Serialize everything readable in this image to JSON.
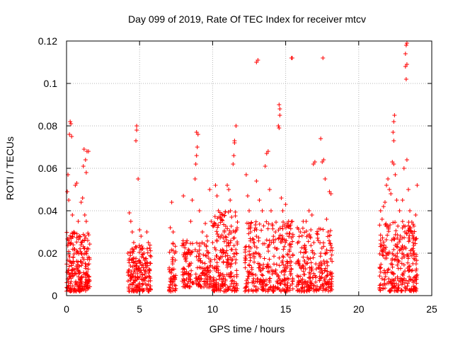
{
  "chart_data": {
    "type": "scatter",
    "title": "Day 099 of 2019, Rate Of TEC Index for receiver mtcv",
    "xlabel": "GPS time / hours",
    "ylabel": "ROTI / TECUs",
    "xlim": [
      0,
      25
    ],
    "ylim": [
      0,
      0.12
    ],
    "x_ticks": [
      0,
      5,
      10,
      15,
      20,
      25
    ],
    "x_tick_labels": [
      "0",
      "5",
      "10",
      "15",
      "20",
      "25"
    ],
    "y_ticks": [
      0,
      0.02,
      0.04,
      0.06,
      0.08,
      0.1,
      0.12
    ],
    "y_tick_labels": [
      "0",
      "0.02",
      "0.04",
      "0.06",
      "0.08",
      "0.1",
      "0.12"
    ],
    "grid": true,
    "marker": "+",
    "color": "#ff0000",
    "series": [
      {
        "name": "ROTI",
        "points": [
          [
            0.1,
            0.012
          ],
          [
            0.2,
            0.025
          ],
          [
            0.25,
            0.082
          ],
          [
            0.2,
            0.076
          ],
          [
            0.3,
            0.081
          ],
          [
            0.35,
            0.075
          ],
          [
            0.1,
            0.057
          ],
          [
            0.05,
            0.049
          ],
          [
            0.15,
            0.045
          ],
          [
            0.4,
            0.038
          ],
          [
            0.5,
            0.03
          ],
          [
            0.6,
            0.052
          ],
          [
            0.7,
            0.053
          ],
          [
            0.55,
            0.022
          ],
          [
            0.45,
            0.018
          ],
          [
            0.3,
            0.01
          ],
          [
            0.6,
            0.006
          ],
          [
            0.8,
            0.035
          ],
          [
            0.9,
            0.028
          ],
          [
            1.0,
            0.044
          ],
          [
            1.1,
            0.046
          ],
          [
            1.15,
            0.061
          ],
          [
            1.2,
            0.069
          ],
          [
            1.3,
            0.064
          ],
          [
            1.35,
            0.058
          ],
          [
            1.4,
            0.068
          ],
          [
            1.5,
            0.068
          ],
          [
            1.25,
            0.038
          ],
          [
            1.35,
            0.035
          ],
          [
            1.45,
            0.026
          ],
          [
            1.5,
            0.022
          ],
          [
            1.3,
            0.015
          ],
          [
            1.2,
            0.01
          ],
          [
            1.0,
            0.008
          ],
          [
            0.8,
            0.012
          ],
          [
            4.3,
            0.039
          ],
          [
            4.4,
            0.035
          ],
          [
            4.5,
            0.03
          ],
          [
            4.6,
            0.025
          ],
          [
            4.2,
            0.02
          ],
          [
            4.8,
            0.08
          ],
          [
            4.8,
            0.078
          ],
          [
            4.75,
            0.073
          ],
          [
            4.9,
            0.055
          ],
          [
            5.0,
            0.031
          ],
          [
            5.1,
            0.028
          ],
          [
            5.2,
            0.022
          ],
          [
            5.3,
            0.02
          ],
          [
            5.5,
            0.03
          ],
          [
            5.6,
            0.025
          ],
          [
            5.4,
            0.015
          ],
          [
            5.2,
            0.01
          ],
          [
            4.9,
            0.012
          ],
          [
            4.4,
            0.01
          ],
          [
            4.6,
            0.006
          ],
          [
            5.7,
            0.012
          ],
          [
            7.2,
            0.044
          ],
          [
            7.1,
            0.032
          ],
          [
            7.3,
            0.03
          ],
          [
            7.4,
            0.02
          ],
          [
            7.2,
            0.012
          ],
          [
            7.3,
            0.008
          ],
          [
            7.4,
            0.005
          ],
          [
            8.0,
            0.047
          ],
          [
            8.2,
            0.02
          ],
          [
            8.4,
            0.015
          ],
          [
            8.5,
            0.035
          ],
          [
            8.6,
            0.045
          ],
          [
            8.8,
            0.055
          ],
          [
            8.85,
            0.062
          ],
          [
            8.9,
            0.066
          ],
          [
            8.95,
            0.07
          ],
          [
            8.9,
            0.077
          ],
          [
            9.0,
            0.076
          ],
          [
            9.1,
            0.04
          ],
          [
            9.3,
            0.03
          ],
          [
            9.5,
            0.034
          ],
          [
            9.6,
            0.028
          ],
          [
            9.7,
            0.02
          ],
          [
            9.8,
            0.05
          ],
          [
            9.9,
            0.035
          ],
          [
            9.7,
            0.012
          ],
          [
            9.4,
            0.01
          ],
          [
            9.0,
            0.008
          ],
          [
            8.6,
            0.006
          ],
          [
            8.3,
            0.01
          ],
          [
            10.0,
            0.025
          ],
          [
            10.2,
            0.052
          ],
          [
            10.3,
            0.047
          ],
          [
            10.4,
            0.04
          ],
          [
            10.6,
            0.036
          ],
          [
            10.8,
            0.03
          ],
          [
            10.9,
            0.02
          ],
          [
            11.0,
            0.052
          ],
          [
            11.1,
            0.05
          ],
          [
            11.2,
            0.045
          ],
          [
            11.3,
            0.037
          ],
          [
            11.4,
            0.062
          ],
          [
            11.45,
            0.066
          ],
          [
            11.5,
            0.072
          ],
          [
            11.5,
            0.073
          ],
          [
            11.6,
            0.08
          ],
          [
            11.3,
            0.015
          ],
          [
            11.1,
            0.01
          ],
          [
            10.7,
            0.008
          ],
          [
            10.4,
            0.012
          ],
          [
            10.1,
            0.007
          ],
          [
            11.6,
            0.02
          ],
          [
            12.3,
            0.057
          ],
          [
            12.4,
            0.047
          ],
          [
            12.5,
            0.04
          ],
          [
            12.6,
            0.03
          ],
          [
            12.8,
            0.025
          ],
          [
            13.0,
            0.11
          ],
          [
            13.1,
            0.111
          ],
          [
            13.0,
            0.054
          ],
          [
            13.2,
            0.045
          ],
          [
            13.4,
            0.04
          ],
          [
            13.6,
            0.061
          ],
          [
            13.7,
            0.067
          ],
          [
            13.8,
            0.068
          ],
          [
            13.9,
            0.05
          ],
          [
            14.0,
            0.04
          ],
          [
            14.1,
            0.033
          ],
          [
            14.3,
            0.03
          ],
          [
            14.5,
            0.08
          ],
          [
            14.55,
            0.079
          ],
          [
            14.6,
            0.085
          ],
          [
            14.55,
            0.09
          ],
          [
            14.6,
            0.088
          ],
          [
            14.7,
            0.046
          ],
          [
            14.8,
            0.04
          ],
          [
            15.0,
            0.043
          ],
          [
            15.2,
            0.035
          ],
          [
            15.4,
            0.112
          ],
          [
            15.45,
            0.112
          ],
          [
            15.5,
            0.028
          ],
          [
            15.3,
            0.018
          ],
          [
            14.9,
            0.012
          ],
          [
            14.4,
            0.01
          ],
          [
            13.9,
            0.008
          ],
          [
            13.3,
            0.012
          ],
          [
            12.8,
            0.008
          ],
          [
            12.5,
            0.01
          ],
          [
            15.8,
            0.032
          ],
          [
            16.0,
            0.03
          ],
          [
            16.2,
            0.035
          ],
          [
            16.4,
            0.035
          ],
          [
            16.6,
            0.04
          ],
          [
            16.8,
            0.038
          ],
          [
            16.9,
            0.062
          ],
          [
            17.0,
            0.063
          ],
          [
            17.4,
            0.074
          ],
          [
            17.5,
            0.063
          ],
          [
            17.6,
            0.064
          ],
          [
            17.55,
            0.112
          ],
          [
            17.7,
            0.055
          ],
          [
            17.8,
            0.036
          ],
          [
            18.0,
            0.049
          ],
          [
            18.1,
            0.048
          ],
          [
            17.9,
            0.03
          ],
          [
            17.7,
            0.02
          ],
          [
            17.3,
            0.015
          ],
          [
            16.8,
            0.012
          ],
          [
            16.3,
            0.01
          ],
          [
            15.9,
            0.007
          ],
          [
            18.1,
            0.01
          ],
          [
            21.5,
            0.04
          ],
          [
            21.6,
            0.036
          ],
          [
            21.7,
            0.042
          ],
          [
            21.8,
            0.044
          ],
          [
            21.9,
            0.052
          ],
          [
            22.0,
            0.055
          ],
          [
            22.1,
            0.05
          ],
          [
            22.2,
            0.048
          ],
          [
            22.3,
            0.063
          ],
          [
            22.4,
            0.062
          ],
          [
            22.4,
            0.073
          ],
          [
            22.35,
            0.077
          ],
          [
            22.4,
            0.082
          ],
          [
            22.45,
            0.085
          ],
          [
            22.5,
            0.057
          ],
          [
            22.6,
            0.045
          ],
          [
            22.8,
            0.04
          ],
          [
            23.0,
            0.045
          ],
          [
            23.1,
            0.06
          ],
          [
            23.2,
            0.108
          ],
          [
            23.25,
            0.102
          ],
          [
            23.3,
            0.109
          ],
          [
            23.2,
            0.114
          ],
          [
            23.3,
            0.119
          ],
          [
            23.25,
            0.118
          ],
          [
            23.3,
            0.064
          ],
          [
            23.4,
            0.05
          ],
          [
            23.5,
            0.04
          ],
          [
            23.7,
            0.03
          ],
          [
            23.9,
            0.038
          ],
          [
            24.0,
            0.052
          ],
          [
            23.8,
            0.02
          ],
          [
            23.5,
            0.012
          ],
          [
            23.0,
            0.01
          ],
          [
            22.5,
            0.008
          ],
          [
            22.0,
            0.012
          ],
          [
            21.6,
            0.008
          ]
        ],
        "dense_bands": [
          {
            "x_range": [
              0.0,
              1.6
            ],
            "y_range": [
              0.002,
              0.03
            ],
            "n": 220
          },
          {
            "x_range": [
              4.2,
              5.8
            ],
            "y_range": [
              0.002,
              0.024
            ],
            "n": 180
          },
          {
            "x_range": [
              7.0,
              7.5
            ],
            "y_range": [
              0.002,
              0.025
            ],
            "n": 50
          },
          {
            "x_range": [
              7.9,
              9.9
            ],
            "y_range": [
              0.004,
              0.026
            ],
            "n": 170
          },
          {
            "x_range": [
              10.0,
              11.7
            ],
            "y_range": [
              0.002,
              0.04
            ],
            "n": 210
          },
          {
            "x_range": [
              12.2,
              15.5
            ],
            "y_range": [
              0.002,
              0.035
            ],
            "n": 320
          },
          {
            "x_range": [
              15.7,
              18.2
            ],
            "y_range": [
              0.002,
              0.032
            ],
            "n": 240
          },
          {
            "x_range": [
              21.4,
              24.0
            ],
            "y_range": [
              0.002,
              0.035
            ],
            "n": 280
          }
        ]
      }
    ]
  }
}
